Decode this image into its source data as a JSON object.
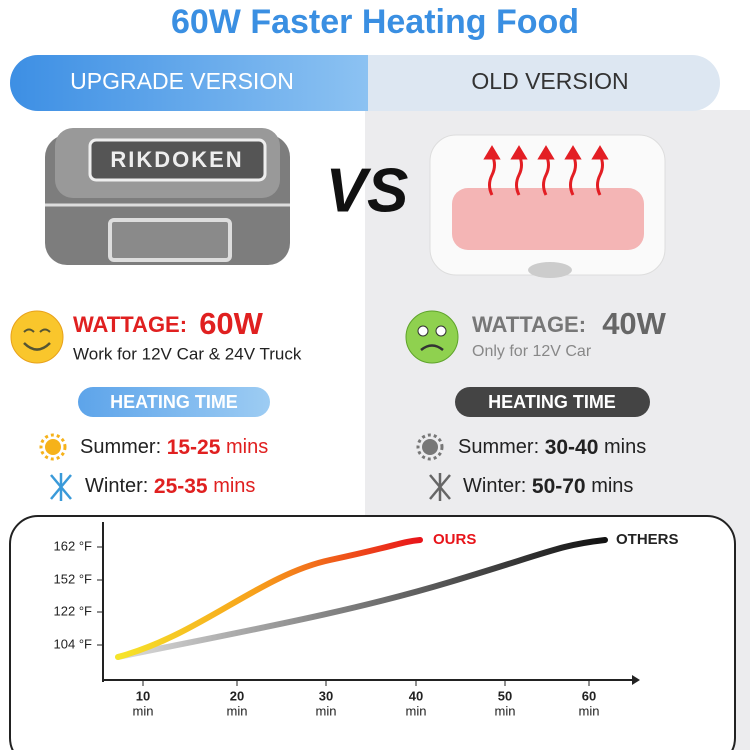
{
  "header": {
    "title": "60W Faster Heating Food"
  },
  "banner": {
    "left": "UPGRADE VERSION",
    "right": "OLD VERSION"
  },
  "product": {
    "brand": "RIKDOKEN",
    "vs": "VS"
  },
  "upgrade": {
    "wattage_label": "WATTAGE:",
    "wattage_value": "60W",
    "note": "Work for 12V Car & 24V Truck",
    "heating_time": "HEATING TIME",
    "summer": {
      "label": "Summer:",
      "time": "15-25",
      "unit": "mins"
    },
    "winter": {
      "label": "Winter:",
      "time": "25-35",
      "unit": "mins"
    }
  },
  "old": {
    "wattage_label": "WATTAGE:",
    "wattage_value": "40W",
    "note": "Only for 12V Car",
    "heating_time": "HEATING TIME",
    "summer": {
      "label": "Summer:",
      "time": "30-40",
      "unit": "mins"
    },
    "winter": {
      "label": "Winter:",
      "time": "50-70",
      "unit": "mins"
    }
  },
  "chart": {
    "yticks": [
      "162 °F",
      "152 °F",
      "122 °F",
      "104 °F"
    ],
    "xticks": [
      {
        "value": "10",
        "unit": "min"
      },
      {
        "value": "20",
        "unit": "min"
      },
      {
        "value": "30",
        "unit": "min"
      },
      {
        "value": "40",
        "unit": "min"
      },
      {
        "value": "50",
        "unit": "min"
      },
      {
        "value": "60",
        "unit": "min"
      }
    ],
    "series": [
      "OURS",
      "OTHERS"
    ]
  }
}
